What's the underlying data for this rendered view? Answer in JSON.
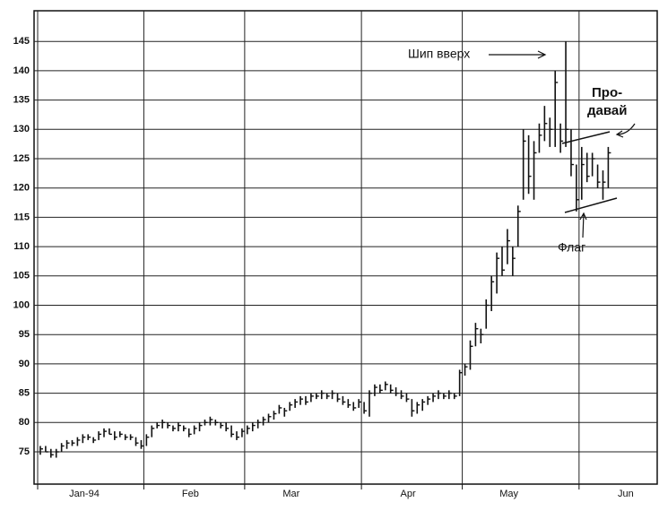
{
  "chart_data": {
    "type": "ohlc",
    "categories": [
      "Jan-94",
      null,
      null,
      null,
      null,
      null,
      null,
      null,
      null,
      null,
      null,
      null,
      null,
      null,
      null,
      null,
      null,
      null,
      null,
      null,
      "Feb",
      null,
      null,
      null,
      null,
      null,
      null,
      null,
      null,
      null,
      null,
      null,
      null,
      null,
      null,
      null,
      null,
      null,
      null,
      "Mar",
      null,
      null,
      null,
      null,
      null,
      null,
      null,
      null,
      null,
      null,
      null,
      null,
      null,
      null,
      null,
      null,
      null,
      null,
      null,
      null,
      null,
      "Apr",
      null,
      null,
      null,
      null,
      null,
      null,
      null,
      null,
      null,
      null,
      null,
      null,
      null,
      null,
      null,
      null,
      null,
      null,
      "May",
      null,
      null,
      null,
      null,
      null,
      null,
      null,
      null,
      null,
      null,
      null,
      null,
      null,
      null,
      null,
      null,
      null,
      null,
      null,
      null,
      null,
      "Jun",
      null,
      null,
      null,
      null,
      null
    ],
    "high": [
      76,
      76,
      75.5,
      75.5,
      76.5,
      77,
      77,
      77.5,
      78,
      78,
      77.5,
      78.5,
      79,
      79,
      78.5,
      78.5,
      78,
      78,
      77.5,
      77,
      78,
      79.5,
      80,
      80.5,
      80,
      79.5,
      80,
      79.5,
      79,
      79.5,
      80,
      80.5,
      81,
      80.5,
      80,
      80,
      79.5,
      78.5,
      79,
      79.5,
      80,
      80.5,
      81,
      81.5,
      82,
      83,
      82.5,
      83.5,
      84,
      84.5,
      84.5,
      85,
      85,
      85.5,
      85,
      85.5,
      85,
      84.5,
      84,
      83.5,
      84,
      83.5,
      85.5,
      86.5,
      86.5,
      87,
      86.5,
      86,
      85.5,
      85,
      84,
      83.5,
      84,
      84.5,
      85,
      85.5,
      85,
      85.5,
      85,
      89,
      90,
      94,
      97,
      96,
      101,
      105,
      109,
      110,
      113,
      110,
      117,
      130,
      129,
      128,
      131,
      134,
      132,
      140,
      131,
      145,
      130,
      124,
      127,
      126,
      126,
      124,
      123,
      127
    ],
    "low": [
      74.5,
      75,
      74,
      74,
      75,
      75.5,
      76,
      76,
      76.5,
      77,
      76.5,
      77,
      77.5,
      78,
      77,
      77.5,
      77,
      77,
      76,
      75.5,
      76,
      77.5,
      79,
      79,
      79,
      78.5,
      78.5,
      78.5,
      77.5,
      78,
      78.5,
      79.5,
      79.5,
      79.5,
      79,
      78.5,
      77.5,
      77,
      77.5,
      78,
      78.5,
      79,
      79.5,
      80,
      80.5,
      81.5,
      81,
      82,
      82.5,
      83,
      83,
      83.5,
      84,
      84,
      84,
      84,
      83.5,
      83,
      82.5,
      82,
      82.5,
      81.5,
      81,
      84.5,
      85,
      85.5,
      85,
      84.5,
      84,
      83.5,
      81,
      81.5,
      82,
      83,
      83.5,
      84,
      84,
      84,
      84,
      84.5,
      88,
      89,
      93,
      93.5,
      96,
      99,
      102,
      105,
      107,
      105,
      110,
      118,
      119,
      118,
      126,
      128,
      127,
      127,
      126,
      127,
      122,
      116,
      118,
      121,
      122,
      120,
      118,
      120
    ],
    "close": [
      75.5,
      75,
      74.5,
      75,
      76,
      76.5,
      76.5,
      77,
      77.5,
      77.5,
      77,
      78,
      78.5,
      78,
      77.5,
      78,
      77.5,
      77.5,
      76.5,
      76,
      77.5,
      79,
      79.5,
      80,
      79.5,
      79,
      79.5,
      79,
      78,
      79,
      79.5,
      80,
      80.5,
      80,
      79.5,
      79,
      78,
      77.5,
      78.5,
      79,
      79.5,
      80,
      80.5,
      81,
      81.5,
      82.5,
      82,
      83,
      83.5,
      84,
      83.5,
      84.5,
      84.5,
      85,
      84.5,
      85,
      84,
      83.5,
      83,
      82.5,
      83.5,
      82,
      85,
      86,
      85.5,
      86.5,
      85.5,
      85,
      84.5,
      84,
      82,
      83,
      83.5,
      84,
      84.5,
      85,
      84.5,
      85,
      84.5,
      88.5,
      89.5,
      93,
      96,
      95,
      100,
      104,
      108,
      106,
      111,
      108,
      116,
      128,
      122,
      126,
      129,
      131,
      130,
      138,
      128,
      130,
      124,
      118,
      124,
      122,
      125,
      121,
      121,
      126
    ],
    "ylim": [
      70,
      150
    ],
    "yticks": [
      75,
      80,
      85,
      90,
      95,
      100,
      105,
      110,
      115,
      120,
      125,
      130,
      135,
      140,
      145
    ],
    "grid": true,
    "color": "#111111",
    "annotations": [
      "Шип вверх",
      "Про-",
      "давай",
      "Флаг"
    ]
  }
}
